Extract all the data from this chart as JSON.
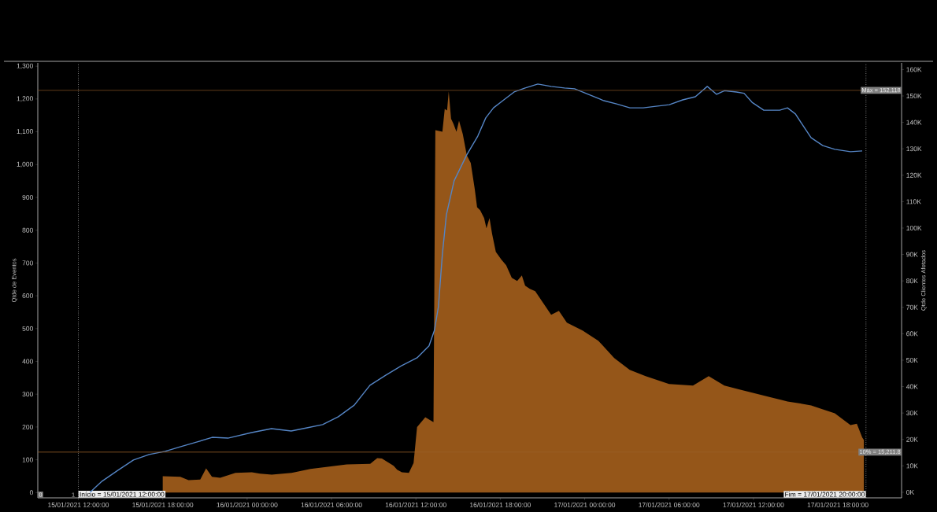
{
  "chart_data": {
    "type": "area",
    "ylabel": "Qtde de Eventos",
    "y2label": "Qtde Clientes Afetados",
    "xlim": [
      "2021-01-15T09:07",
      "2021-01-17T22:32"
    ],
    "xticks": [
      {
        "value": "2021-01-15T12:00",
        "label": "15/01/2021 12:00:00"
      },
      {
        "value": "2021-01-15T18:00",
        "label": "15/01/2021 18:00:00"
      },
      {
        "value": "2021-01-16T00:00",
        "label": "16/01/2021 00:00:00"
      },
      {
        "value": "2021-01-16T06:00",
        "label": "16/01/2021 06:00:00"
      },
      {
        "value": "2021-01-16T12:00",
        "label": "16/01/2021 12:00:00"
      },
      {
        "value": "2021-01-16T18:00",
        "label": "16/01/2021 18:00:00"
      },
      {
        "value": "2021-01-17T00:00",
        "label": "17/01/2021 00:00:00"
      },
      {
        "value": "2021-01-17T06:00",
        "label": "17/01/2021 06:00:00"
      },
      {
        "value": "2021-01-17T12:00",
        "label": "17/01/2021 12:00:00"
      },
      {
        "value": "2021-01-17T18:00",
        "label": "17/01/2021 18:00:00"
      }
    ],
    "ylim": [
      -16,
      1310
    ],
    "yticks": [
      0,
      100,
      200,
      300,
      400,
      500,
      600,
      700,
      800,
      900,
      {
        "value": 1000,
        "label": "1,000"
      },
      {
        "value": 1100,
        "label": "1,100"
      },
      {
        "value": 1200,
        "label": "1,200"
      },
      {
        "value": 1300,
        "label": "1,300"
      }
    ],
    "y2lim": [
      -2100,
      162500
    ],
    "y2ticks": [
      {
        "value": 0,
        "label": "0K"
      },
      {
        "value": 10000,
        "label": "10K"
      },
      {
        "value": 20000,
        "label": "20K"
      },
      {
        "value": 30000,
        "label": "30K"
      },
      {
        "value": 40000,
        "label": "40K"
      },
      {
        "value": 50000,
        "label": "50K"
      },
      {
        "value": 60000,
        "label": "60K"
      },
      {
        "value": 70000,
        "label": "70K"
      },
      {
        "value": 80000,
        "label": "80K"
      },
      {
        "value": 90000,
        "label": "90K"
      },
      {
        "value": 100000,
        "label": "100K"
      },
      {
        "value": 110000,
        "label": "110K"
      },
      {
        "value": 120000,
        "label": "120K"
      },
      {
        "value": 130000,
        "label": "130K"
      },
      {
        "value": 140000,
        "label": "140K"
      },
      {
        "value": 150000,
        "label": "150K"
      },
      {
        "value": 160000,
        "label": "160K"
      }
    ],
    "series": [
      {
        "color": "#955619",
        "x": [
          "2021-01-15T18:00",
          "2021-01-15T19:15",
          "2021-01-15T19:50",
          "2021-01-15T20:40",
          "2021-01-15T21:05",
          "2021-01-15T21:30",
          "2021-01-15T22:05",
          "2021-01-15T23:10",
          "2021-01-16T00:20",
          "2021-01-16T00:55",
          "2021-01-16T01:45",
          "2021-01-16T03:10",
          "2021-01-16T04:30",
          "2021-01-16T07:05",
          "2021-01-16T08:45",
          "2021-01-16T09:15",
          "2021-01-16T09:35",
          "2021-01-16T10:25",
          "2021-01-16T10:40",
          "2021-01-16T11:00",
          "2021-01-16T11:30",
          "2021-01-16T11:50",
          "2021-01-16T12:05",
          "2021-01-16T12:40",
          "2021-01-16T13:15",
          "2021-01-16T13:23",
          "2021-01-16T13:53",
          "2021-01-16T14:03",
          "2021-01-16T14:13",
          "2021-01-16T14:20",
          "2021-01-16T14:30",
          "2021-01-16T14:40",
          "2021-01-16T14:53",
          "2021-01-16T15:04",
          "2021-01-16T15:20",
          "2021-01-16T15:37",
          "2021-01-16T15:54",
          "2021-01-16T16:11",
          "2021-01-16T16:21",
          "2021-01-16T16:34",
          "2021-01-16T16:51",
          "2021-01-16T17:01",
          "2021-01-16T17:14",
          "2021-01-16T17:25",
          "2021-01-16T17:41",
          "2021-01-16T18:05",
          "2021-01-16T18:25",
          "2021-01-16T18:49",
          "2021-01-16T19:12",
          "2021-01-16T19:32",
          "2021-01-16T19:46",
          "2021-01-16T20:06",
          "2021-01-16T20:29",
          "2021-01-16T21:03",
          "2021-01-16T21:37",
          "2021-01-16T22:10",
          "2021-01-16T22:44",
          "2021-01-16T23:51",
          "2021-01-17T00:58",
          "2021-01-17T02:06",
          "2021-01-17T03:12",
          "2021-01-17T04:20",
          "2021-01-17T06:00",
          "2021-01-17T07:42",
          "2021-01-17T08:49",
          "2021-01-17T09:56",
          "2021-01-17T11:04",
          "2021-01-17T12:11",
          "2021-01-17T13:18",
          "2021-01-17T14:25",
          "2021-01-17T16:06",
          "2021-01-17T16:56",
          "2021-01-17T17:47",
          "2021-01-17T18:54",
          "2021-01-17T19:21",
          "2021-01-17T19:44",
          "2021-01-17T19:51"
        ],
        "values": [
          50,
          48,
          38,
          40,
          74,
          48,
          45,
          60,
          62,
          58,
          55,
          60,
          72,
          86,
          88,
          105,
          104,
          82,
          70,
          62,
          60,
          90,
          200,
          230,
          215,
          1105,
          1100,
          1170,
          1165,
          1223,
          1140,
          1125,
          1100,
          1134,
          1093,
          1029,
          1005,
          926,
          870,
          861,
          837,
          806,
          837,
          789,
          734,
          710,
          693,
          655,
          645,
          662,
          631,
          621,
          614,
          578,
          542,
          554,
          518,
          494,
          463,
          410,
          374,
          355,
          331,
          326,
          355,
          326,
          314,
          302,
          290,
          278,
          266,
          254,
          242,
          206,
          210,
          168,
          160
        ]
      },
      {
        "type": "line",
        "axis": "y2",
        "color": "#5585c5",
        "x": [
          "2021-01-15T12:50",
          "2021-01-15T13:41",
          "2021-01-15T14:48",
          "2021-01-15T15:55",
          "2021-01-15T17:02",
          "2021-01-15T18:10",
          "2021-01-15T19:17",
          "2021-01-15T20:24",
          "2021-01-15T21:31",
          "2021-01-15T22:38",
          "2021-01-16T00:19",
          "2021-01-16T01:44",
          "2021-01-16T03:08",
          "2021-01-16T04:15",
          "2021-01-16T05:22",
          "2021-01-16T06:29",
          "2021-01-16T07:37",
          "2021-01-16T08:44",
          "2021-01-16T09:51",
          "2021-01-16T10:58",
          "2021-01-16T12:05",
          "2021-01-16T12:56",
          "2021-01-16T13:19",
          "2021-01-16T13:36",
          "2021-01-16T13:53",
          "2021-01-16T14:10",
          "2021-01-16T14:43",
          "2021-01-16T15:37",
          "2021-01-16T16:24",
          "2021-01-16T16:58",
          "2021-01-16T17:31",
          "2021-01-16T18:15",
          "2021-01-16T18:59",
          "2021-01-16T19:46",
          "2021-01-16T20:40",
          "2021-01-16T21:37",
          "2021-01-16T22:34",
          "2021-01-16T23:17",
          "2021-01-17T00:15",
          "2021-01-17T01:22",
          "2021-01-17T02:16",
          "2021-01-17T03:13",
          "2021-01-17T04:10",
          "2021-01-17T05:04",
          "2021-01-17T06:01",
          "2021-01-17T06:58",
          "2021-01-17T07:52",
          "2021-01-17T08:43",
          "2021-01-17T09:23",
          "2021-01-17T09:56",
          "2021-01-17T10:47",
          "2021-01-17T11:20",
          "2021-01-17T11:54",
          "2021-01-17T12:44",
          "2021-01-17T13:52",
          "2021-01-17T14:25",
          "2021-01-17T14:59",
          "2021-01-17T15:32",
          "2021-01-17T16:06",
          "2021-01-17T16:56",
          "2021-01-17T17:47",
          "2021-01-17T18:54",
          "2021-01-17T19:44"
        ],
        "values": [
          0,
          4200,
          8300,
          12200,
          14300,
          15500,
          17300,
          19000,
          20800,
          20500,
          22600,
          24100,
          23200,
          24400,
          25600,
          28600,
          33000,
          40500,
          44300,
          47900,
          50900,
          55400,
          61300,
          70200,
          90200,
          105000,
          117900,
          127700,
          134800,
          141700,
          145500,
          148500,
          151500,
          153000,
          154500,
          153600,
          153000,
          152700,
          150600,
          148200,
          147000,
          145500,
          145500,
          146100,
          146700,
          148500,
          149700,
          153600,
          150600,
          152000,
          151500,
          151000,
          147600,
          144600,
          144600,
          145500,
          143200,
          138700,
          134200,
          131200,
          129800,
          128900,
          129200
        ]
      }
    ],
    "ref_lines": [
      {
        "axis": "x",
        "value": "2021-01-15T12:00",
        "label": "Início = 15/01/2021 12:00:00",
        "color": "#c0c0c0",
        "line_style": "dotted"
      },
      {
        "axis": "x",
        "value": "2021-01-17T20:00",
        "label": "Fim = 17/01/2021 20:00:00",
        "color": "#c0c0c0",
        "line_style": "dotted"
      },
      {
        "axis": "y2",
        "value": 152118,
        "label": "Máx = 152,118",
        "color": "#7a4a20",
        "line_style": "solid"
      },
      {
        "axis": "y2",
        "value": 15211.8,
        "label": "10% = 15,211.8",
        "color": "#9a6028",
        "line_style": "solid"
      }
    ],
    "annotations": [
      "0",
      "1"
    ]
  }
}
